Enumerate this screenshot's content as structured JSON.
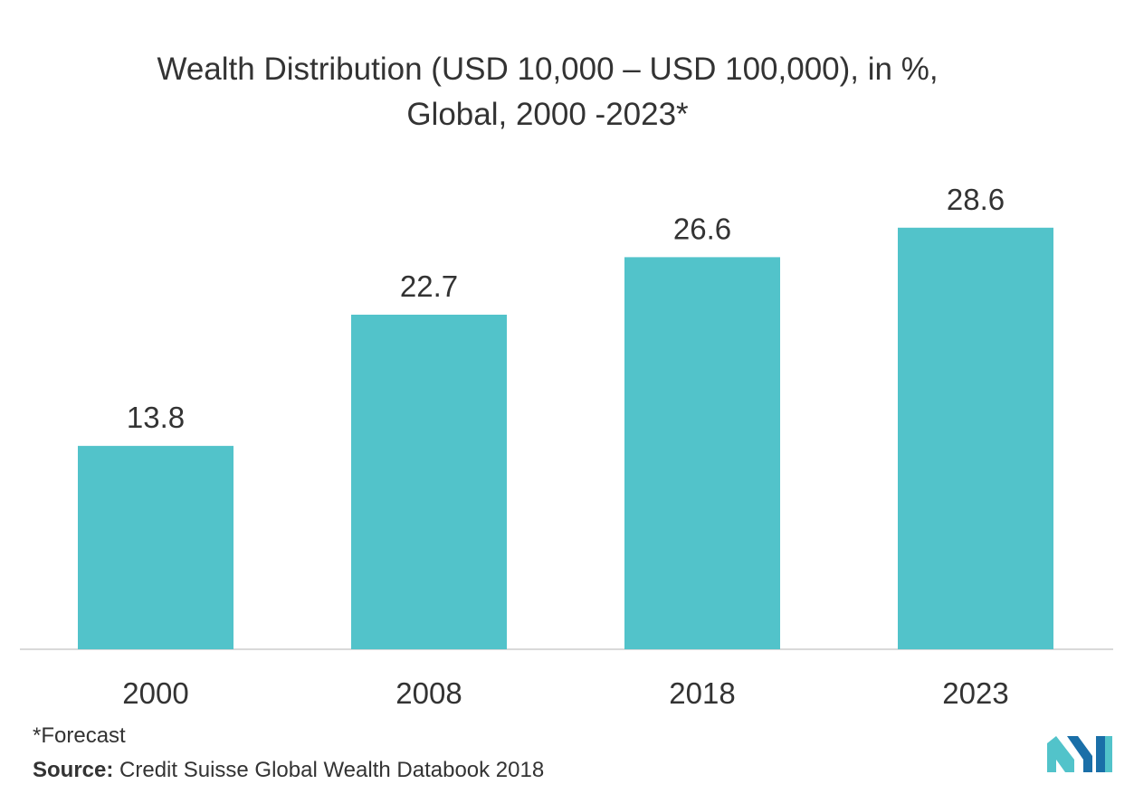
{
  "title_line1": "Wealth Distribution (USD 10,000 – USD 100,000), in %,",
  "title_line2": "Global, 2000 -2023*",
  "footnote": "*Forecast",
  "source_label": "Source:",
  "source_text": "Credit Suisse Global Wealth Databook 2018",
  "colors": {
    "bar": "#52c3ca",
    "axis": "#d9d9d9",
    "text": "#333333",
    "logo_dark": "#1a6fa8",
    "logo_light": "#52c3ca"
  },
  "chart_data": {
    "type": "bar",
    "title": "Wealth Distribution (USD 10,000 – USD 100,000), in %, Global, 2000 -2023*",
    "categories": [
      "2000",
      "2008",
      "2018",
      "2023"
    ],
    "values": [
      13.8,
      22.7,
      26.6,
      28.6
    ],
    "value_labels": [
      "13.8",
      "22.7",
      "26.6",
      "28.6"
    ],
    "xlabel": "",
    "ylabel": "",
    "ylim": [
      0,
      33
    ],
    "grid": false,
    "legend": "none"
  }
}
